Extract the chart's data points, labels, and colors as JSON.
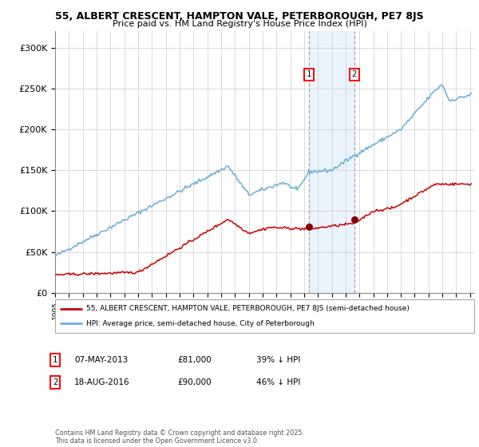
{
  "title_line1": "55, ALBERT CRESCENT, HAMPTON VALE, PETERBOROUGH, PE7 8JS",
  "title_line2": "Price paid vs. HM Land Registry's House Price Index (HPI)",
  "ylim": [
    0,
    320000
  ],
  "yticks": [
    0,
    50000,
    100000,
    150000,
    200000,
    250000,
    300000
  ],
  "ytick_labels": [
    "£0",
    "£50K",
    "£100K",
    "£150K",
    "£200K",
    "£250K",
    "£300K"
  ],
  "hpi_color": "#6baed6",
  "price_color": "#cc0000",
  "marker_color": "#8b0000",
  "grid_color": "#cccccc",
  "shade_color": "#ddeeff",
  "dashed_color": "#aaaaaa",
  "legend_label_red": "55, ALBERT CRESCENT, HAMPTON VALE, PETERBOROUGH, PE7 8JS (semi-detached house)",
  "legend_label_blue": "HPI: Average price, semi-detached house, City of Peterborough",
  "annotation1_label": "1",
  "annotation1_date": "07-MAY-2013",
  "annotation1_price": "£81,000",
  "annotation1_hpi": "39% ↓ HPI",
  "annotation2_label": "2",
  "annotation2_date": "18-AUG-2016",
  "annotation2_price": "£90,000",
  "annotation2_hpi": "46% ↓ HPI",
  "copyright_text": "Contains HM Land Registry data © Crown copyright and database right 2025.\nThis data is licensed under the Open Government Licence v3.0.",
  "sale1_year": 2013.35,
  "sale2_year": 2016.63,
  "sale1_price": 81000,
  "sale2_price": 90000
}
